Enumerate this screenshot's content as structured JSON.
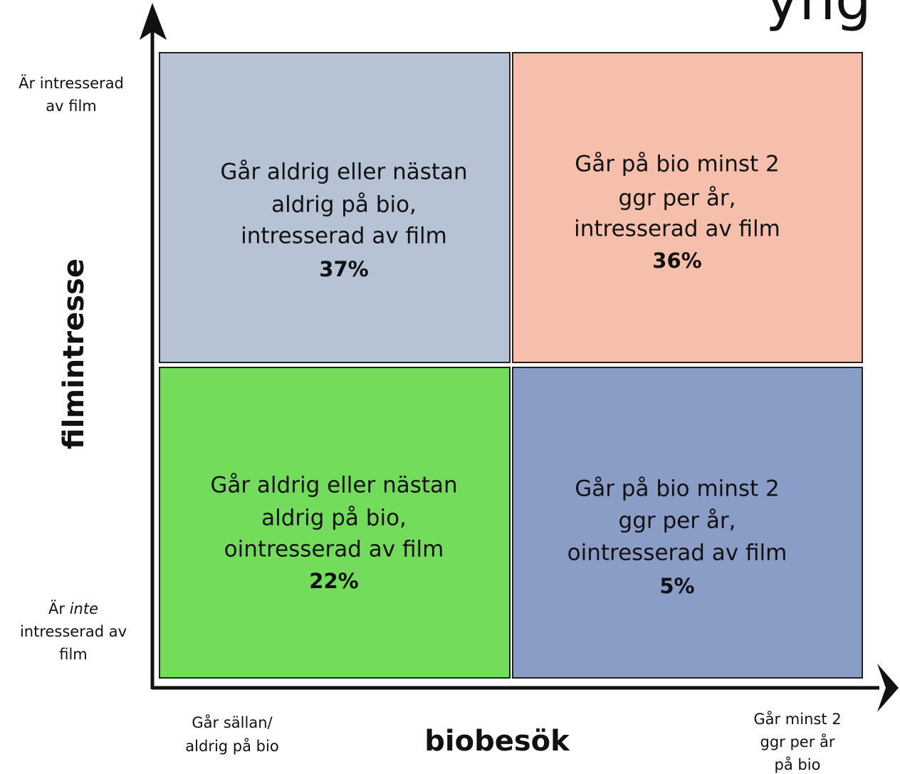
{
  "title": "yng",
  "y_axis": {
    "title": "filmintresse",
    "high": [
      "Är intresserad",
      "av film"
    ],
    "low": {
      "pre": "Är ",
      "em": "inte",
      "lines": [
        "intresserad av",
        "film"
      ]
    }
  },
  "x_axis": {
    "title": "biobesök",
    "low": [
      "Går sällan/",
      "aldrig på bio"
    ],
    "high": [
      "Går minst 2",
      "ggr per år",
      "på bio"
    ]
  },
  "quadrants": [
    {
      "lines": [
        "Går aldrig eller nästan",
        "aldrig på bio,",
        "intresserad av film"
      ],
      "percent": "37%",
      "color": "#b5c3d5"
    },
    {
      "lines": [
        "Går på bio minst 2",
        "ggr per år,",
        "intresserad av film"
      ],
      "percent": "36%",
      "color": "#f5bfab"
    },
    {
      "lines": [
        "Går aldrig eller nästan",
        "aldrig på bio,",
        "ointresserad av film"
      ],
      "percent": "22%",
      "color": "#74dc5b"
    },
    {
      "lines": [
        "Går på bio minst 2",
        "ggr per år,",
        "ointresserad av film"
      ],
      "percent": "5%",
      "color": "#8a9dc6"
    }
  ]
}
